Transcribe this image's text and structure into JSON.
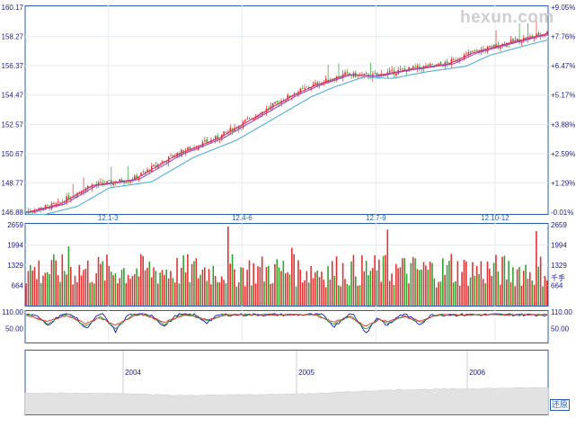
{
  "watermark": "hexun.com",
  "restore_label": "还原",
  "colors": {
    "up": "#e03030",
    "down": "#30a030",
    "frame": "#2a5db0",
    "grid": "#e6e9ef",
    "ma_red": "#e0306a",
    "ma_purple": "#9a50c0",
    "ma_cyan": "#50b0d0",
    "overview_fill": "#e2e2e2"
  },
  "chart_data": [
    {
      "type": "candlestick",
      "name_key": "price",
      "y_ticks_left": [
        "160.17",
        "158.27",
        "156.37",
        "154.47",
        "152.57",
        "150.67",
        "148.77",
        "146.88"
      ],
      "y_ticks_right": [
        "+9.05%",
        "+7.76%",
        "+6.47%",
        "+5.17%",
        "+3.88%",
        "+2.59%",
        "+1.29%",
        "-0.01%"
      ],
      "x_ticks": [
        "12.1-3",
        "12.4-6",
        "12.7-9",
        "12.10-12"
      ],
      "ylim": [
        146.88,
        160.17
      ],
      "base_price": 146.89,
      "price_path": [
        [
          0,
          146.89
        ],
        [
          15,
          147.4
        ],
        [
          30,
          148.6
        ],
        [
          50,
          149.0
        ],
        [
          70,
          150.6
        ],
        [
          90,
          151.7
        ],
        [
          110,
          153.3
        ],
        [
          125,
          154.5
        ],
        [
          135,
          155.1
        ],
        [
          150,
          155.8
        ],
        [
          163,
          155.7
        ],
        [
          178,
          156.1
        ],
        [
          198,
          156.5
        ],
        [
          209,
          157.2
        ],
        [
          225,
          157.8
        ],
        [
          245,
          158.5
        ]
      ],
      "ma_lag": {
        "ma5": 1,
        "ma10": 3,
        "ma30": 9
      },
      "bars": 246
    },
    {
      "type": "bar",
      "name_key": "volume",
      "y_ticks_left": [
        "2659",
        "1994",
        "1329",
        "664"
      ],
      "y_ticks_right": [
        "2659",
        "1994",
        "1329",
        "664"
      ],
      "unit_label": "千手",
      "ylim": [
        0,
        2659
      ],
      "typical_range": [
        600,
        1700
      ],
      "spikes": [
        [
          20,
          1950
        ],
        [
          95,
          2600
        ],
        [
          125,
          1900
        ],
        [
          170,
          2500
        ],
        [
          200,
          1700
        ],
        [
          240,
          2450
        ]
      ]
    },
    {
      "type": "line",
      "name_key": "stochastic",
      "y_ticks_left": [
        "110.00",
        "50.00"
      ],
      "y_ticks_right": [
        "110.00",
        "50.00"
      ],
      "ylim": [
        0,
        110
      ],
      "series_colors": [
        "#1010c0",
        "#30a030",
        "#e03030"
      ],
      "dips": [
        [
          10,
          62
        ],
        [
          28,
          50
        ],
        [
          42,
          40
        ],
        [
          65,
          58
        ],
        [
          85,
          72
        ],
        [
          145,
          58
        ],
        [
          160,
          35
        ],
        [
          170,
          60
        ],
        [
          185,
          66
        ]
      ]
    },
    {
      "type": "area",
      "name_key": "overview",
      "x_ticks": [
        "2004",
        "2005",
        "2006"
      ],
      "path": [
        [
          0,
          0.7
        ],
        [
          0.18,
          0.68
        ],
        [
          0.3,
          0.62
        ],
        [
          0.42,
          0.64
        ],
        [
          0.55,
          0.68
        ],
        [
          0.7,
          0.8
        ],
        [
          0.85,
          0.84
        ],
        [
          1.0,
          0.88
        ]
      ]
    }
  ]
}
